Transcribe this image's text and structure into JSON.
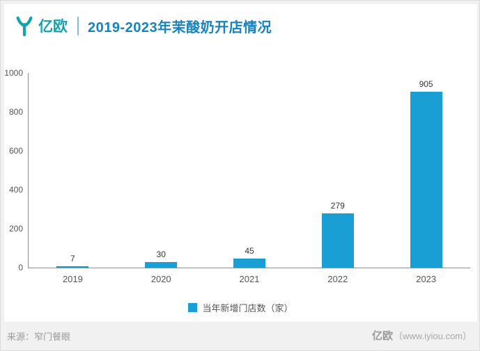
{
  "header": {
    "brand": "亿欧",
    "title": "2019-2023年茉酸奶开店情况"
  },
  "chart_data": {
    "type": "bar",
    "title": "2019-2023年茉酸奶开店情况",
    "categories": [
      "2019",
      "2020",
      "2021",
      "2022",
      "2023"
    ],
    "values": [
      7,
      30,
      45,
      279,
      905
    ],
    "series_name": "当年新增门店数（家）",
    "xlabel": "",
    "ylabel": "",
    "ylim": [
      0,
      1000
    ],
    "yticks": [
      0,
      200,
      400,
      600,
      800,
      1000
    ],
    "grid": false,
    "legend_position": "bottom",
    "bar_color": "#1a9fd4"
  },
  "footer": {
    "source": "来源：窄门餐眼",
    "logo_text": "亿欧",
    "site": "（www.iyiou.com）"
  },
  "colors": {
    "brand_teal": "#13a3ae",
    "title_blue": "#1583c0",
    "bar": "#1a9fd4"
  }
}
